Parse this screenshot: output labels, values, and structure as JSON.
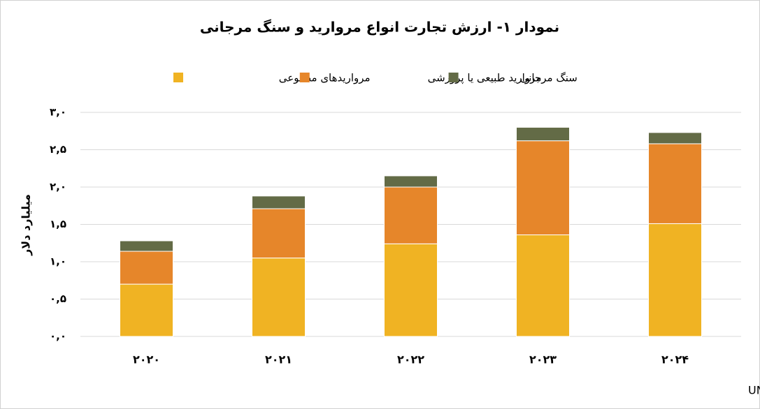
{
  "chart_data": {
    "type": "stacked_bar",
    "title": "نمودار ۱- ارزش تجارت انواع مروارید و سنگ مرجانی",
    "y_axis_label": "میلیارد دلار",
    "source": "منبع: UN Comtrade",
    "categories": [
      "۲۰۲۰",
      "۲۰۲۱",
      "۲۰۲۲",
      "۲۰۲۳",
      "۲۰۲۴"
    ],
    "series": [
      {
        "name": "مرواریدهای مصنوعی",
        "color": "#f0b323",
        "values": [
          0.7,
          1.05,
          1.24,
          1.36,
          1.51
        ]
      },
      {
        "name": "مروارید طبیعی یا پرورشی",
        "color": "#e6862a",
        "values": [
          0.44,
          0.66,
          0.76,
          1.26,
          1.07
        ]
      },
      {
        "name": "سنگ مرجانی",
        "color": "#636b46",
        "values": [
          0.14,
          0.17,
          0.15,
          0.18,
          0.15
        ]
      }
    ],
    "ylim": [
      0,
      3
    ],
    "yticks": [
      {
        "value": 0,
        "label": "۰,۰"
      },
      {
        "value": 0.5,
        "label": "۰,۵"
      },
      {
        "value": 1,
        "label": "۱,۰"
      },
      {
        "value": 1.5,
        "label": "۱,۵"
      },
      {
        "value": 2,
        "label": "۲,۰"
      },
      {
        "value": 2.5,
        "label": "۲,۵"
      },
      {
        "value": 3,
        "label": "۳,۰"
      }
    ],
    "grid": true
  }
}
